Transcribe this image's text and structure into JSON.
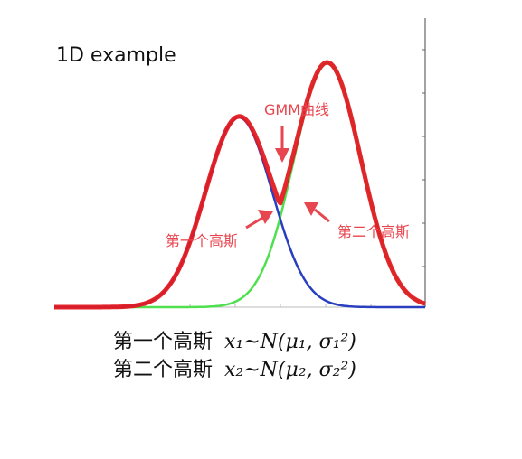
{
  "title": "1D example",
  "annotations": {
    "gmm_curve": "GMM曲线",
    "first_gaussian": "第一个高斯",
    "second_gaussian": "第二个高斯"
  },
  "formulas": [
    {
      "label": "第一个高斯",
      "math": "x₁~N(μ₁, σ₁²)"
    },
    {
      "label": "第二个高斯",
      "math": "x₂~N(μ₂, σ₂²)"
    }
  ],
  "colors": {
    "gmm": "#e11b22",
    "gaussian1": "#2a3fbf",
    "gaussian2": "#4ee04e",
    "annotation": "#e8464f",
    "axis": "#555555"
  }
}
